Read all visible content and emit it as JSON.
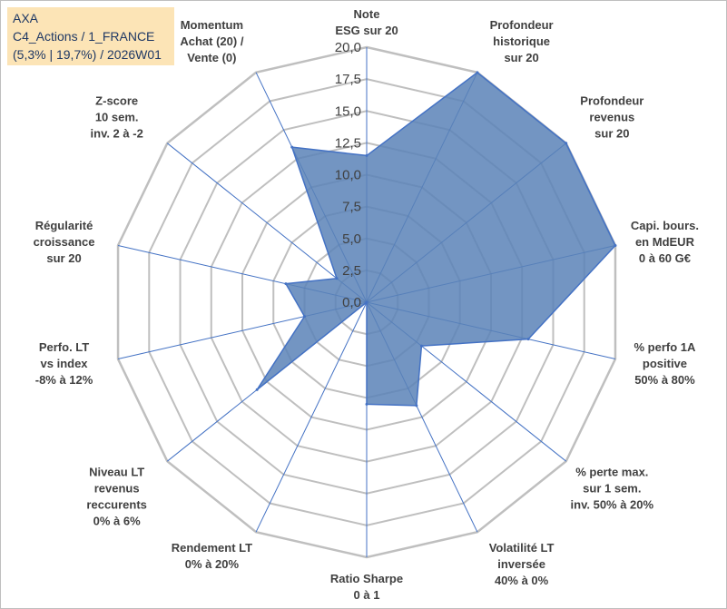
{
  "title_box": {
    "line1": "AXA",
    "line2": "C4_Actions / 1_FRANCE",
    "line3": "(5,3% | 19,7%) / 2026W01"
  },
  "chart_data": {
    "type": "radar",
    "title": "AXA",
    "rmin": 0,
    "rmax": 20,
    "tick_step": 2.5,
    "tick_labels": [
      "0,0",
      "2,5",
      "5,0",
      "7,5",
      "10,0",
      "12,5",
      "15,0",
      "17,5",
      "20,0"
    ],
    "axes": [
      {
        "label": [
          "Note",
          "ESG sur 20"
        ],
        "value": 11.5
      },
      {
        "label": [
          "Profondeur",
          "historique",
          "sur 20"
        ],
        "value": 20
      },
      {
        "label": [
          "Profondeur",
          "revenus",
          "sur 20"
        ],
        "value": 20
      },
      {
        "label": [
          "Capi. bours.",
          "en MdEUR",
          "0 à 60 G€"
        ],
        "value": 20
      },
      {
        "label": [
          "% perfo 1A",
          "positive",
          "50% à 80%"
        ],
        "value": 13
      },
      {
        "label": [
          "% perte max.",
          "sur 1 sem.",
          "inv. 50% à 20%"
        ],
        "value": 5.5
      },
      {
        "label": [
          "Volatilité LT",
          "inversée",
          "40% à 0%"
        ],
        "value": 9
      },
      {
        "label": [
          "Ratio Sharpe",
          "0 à 1"
        ],
        "value": 8
      },
      {
        "label": [
          "Rendement LT",
          "0% à 20%"
        ],
        "value": 0
      },
      {
        "label": [
          "Niveau LT",
          "revenus",
          "reccurents",
          "0% à 6%"
        ],
        "value": 11
      },
      {
        "label": [
          "Perfo. LT",
          "vs index",
          "-8% à 12%"
        ],
        "value": 5
      },
      {
        "label": [
          "Régularité",
          "croissance",
          "sur 20"
        ],
        "value": 6.5
      },
      {
        "label": [
          "Z-score",
          "10 sem.",
          "inv. 2 à -2"
        ],
        "value": 3
      },
      {
        "label": [
          "Momentum",
          "Achat (20) /",
          "Vente (0)"
        ],
        "value": 13.5
      }
    ],
    "colors": {
      "fill": "#5b83b7",
      "stroke": "#4472c4",
      "grid": "#bfbfbf",
      "spoke": "#4472c4",
      "title_bg": "#fce4b6",
      "title_text": "#1f3864"
    }
  }
}
